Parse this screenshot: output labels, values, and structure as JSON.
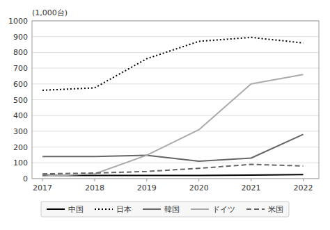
{
  "chart_data": {
    "type": "line",
    "y_label": "(1,000台)",
    "x": [
      2017,
      2018,
      2019,
      2020,
      2021,
      2022
    ],
    "xlim": [
      2016.8,
      2022.3
    ],
    "xticks": [
      2017,
      2018,
      2019,
      2020,
      2021,
      2022
    ],
    "ylim": [
      0,
      1000
    ],
    "yticks": [
      0,
      100,
      200,
      300,
      400,
      500,
      600,
      700,
      800,
      900,
      1000
    ],
    "grid": true,
    "legend": "bottom",
    "series": [
      {
        "name": "中国",
        "color": "#000000",
        "line_style": "solid",
        "values": [
          20,
          20,
          20,
          20,
          22,
          25
        ]
      },
      {
        "name": "日本",
        "color": "#000000",
        "line_style": "dotted",
        "values": [
          560,
          575,
          760,
          870,
          895,
          860
        ]
      },
      {
        "name": "韓国",
        "color": "#666666",
        "line_style": "solid",
        "values": [
          140,
          140,
          148,
          110,
          130,
          280
        ]
      },
      {
        "name": "ドイツ",
        "color": "#aaaaaa",
        "line_style": "solid",
        "values": [
          15,
          30,
          148,
          310,
          600,
          660
        ]
      },
      {
        "name": "米国",
        "color": "#666666",
        "line_style": "dashed",
        "values": [
          30,
          35,
          45,
          65,
          90,
          80
        ]
      }
    ]
  }
}
